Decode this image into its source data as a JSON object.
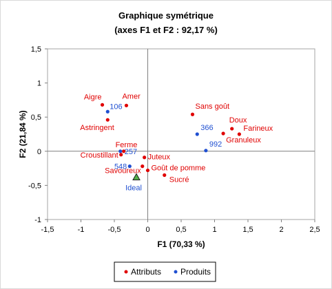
{
  "chart_data": {
    "type": "scatter",
    "title": "Graphique symétrique",
    "subtitle": "(axes F1 et F2 : 92,17 %)",
    "xlabel": "F1 (70,33 %)",
    "ylabel": "F2 (21,84 %)",
    "xlim": [
      -1.5,
      2.5
    ],
    "ylim": [
      -1,
      1.5
    ],
    "x_ticks": [
      -1.5,
      -1,
      -0.5,
      0,
      0.5,
      1,
      1.5,
      2,
      2.5
    ],
    "y_ticks": [
      -1,
      -0.5,
      0,
      0.5,
      1,
      1.5
    ],
    "x_tick_labels": [
      "-1,5",
      "-1",
      "-0,5",
      "0",
      "0,5",
      "1",
      "1,5",
      "2",
      "2,5"
    ],
    "y_tick_labels": [
      "-1",
      "-0,5",
      "0",
      "0,5",
      "1",
      "1,5"
    ],
    "grid": false,
    "legend_position": "bottom",
    "series": [
      {
        "name": "Attributs",
        "color": "#e00000",
        "points": [
          {
            "label": "Aigre",
            "x": -0.68,
            "y": 0.68
          },
          {
            "label": "Amer",
            "x": -0.32,
            "y": 0.67
          },
          {
            "label": "Astringent",
            "x": -0.6,
            "y": 0.46
          },
          {
            "label": "Sans goût",
            "x": 0.67,
            "y": 0.54
          },
          {
            "label": "Doux",
            "x": 1.26,
            "y": 0.33
          },
          {
            "label": "Farineux",
            "x": 1.37,
            "y": 0.25
          },
          {
            "label": "Granuleux",
            "x": 1.13,
            "y": 0.26
          },
          {
            "label": "Ferme",
            "x": -0.36,
            "y": 0.0
          },
          {
            "label": "Croustillant",
            "x": -0.4,
            "y": -0.05
          },
          {
            "label": "Juteux",
            "x": -0.05,
            "y": -0.09
          },
          {
            "label": "Goût de pomme",
            "x": 0.0,
            "y": -0.28
          },
          {
            "label": "Savoureux",
            "x": -0.08,
            "y": -0.22
          },
          {
            "label": "Sucré",
            "x": 0.25,
            "y": -0.35
          }
        ]
      },
      {
        "name": "Produits",
        "color": "#1f4fd1",
        "points": [
          {
            "label": "106",
            "x": -0.6,
            "y": 0.58
          },
          {
            "label": "366",
            "x": 0.74,
            "y": 0.25
          },
          {
            "label": "992",
            "x": 0.87,
            "y": 0.01
          },
          {
            "label": "257",
            "x": -0.41,
            "y": 0.0
          },
          {
            "label": "548",
            "x": -0.27,
            "y": -0.22
          }
        ]
      }
    ],
    "ideal": {
      "label": "Ideal",
      "x": -0.17,
      "y": -0.38,
      "color": "#3a8c2c"
    }
  }
}
